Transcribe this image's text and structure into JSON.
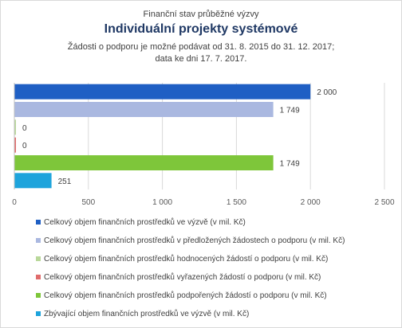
{
  "header": {
    "supertitle": "Finanční stav průběžné výzvy",
    "title": "Individuální projekty systémové",
    "subtitle_line1": "Žádosti o podporu je možné  podávat od 31. 8. 2015 do 31. 12. 2017;",
    "subtitle_line2": "data ke dni 17. 7. 2017."
  },
  "chart_data": {
    "type": "bar",
    "orientation": "horizontal",
    "title": "Individuální projekty systémové",
    "xlim": [
      0,
      2500
    ],
    "xticks": [
      0,
      500,
      1000,
      1500,
      2000,
      2500
    ],
    "xtick_labels": [
      "0",
      "500",
      "1 000",
      "1 500",
      "2 000",
      "2 500"
    ],
    "grid": true,
    "legend_position": "bottom",
    "series": [
      {
        "name": "Celkový objem finančních prostředků ve výzvě (v mil. Kč)",
        "value": 2000,
        "label": "2 000",
        "color": "#1f5fc4"
      },
      {
        "name": "Celkový objem finančních prostředků v předložených žádostech o podporu (v mil. Kč)",
        "value": 1749,
        "label": "1 749",
        "color": "#aab8e0"
      },
      {
        "name": "Celkový objem finančních prostředků hodnocených žádostí o podporu (v mil. Kč)",
        "value": 0,
        "label": "0",
        "color": "#b9d89a"
      },
      {
        "name": "Celkový objem finančních prostředků vyřazených žádostí o podporu (v mil. Kč)",
        "value": 0,
        "label": "0",
        "color": "#e06c6c"
      },
      {
        "name": "Celkový objem finančních prostředků podpořených žádostí o podporu (v mil. Kč)",
        "value": 1749,
        "label": "1 749",
        "color": "#7ec63a"
      },
      {
        "name": "Zbývající objem finančních prostředků ve výzvě (v mil. Kč)",
        "value": 251,
        "label": "251",
        "color": "#1ea4dc"
      }
    ]
  }
}
